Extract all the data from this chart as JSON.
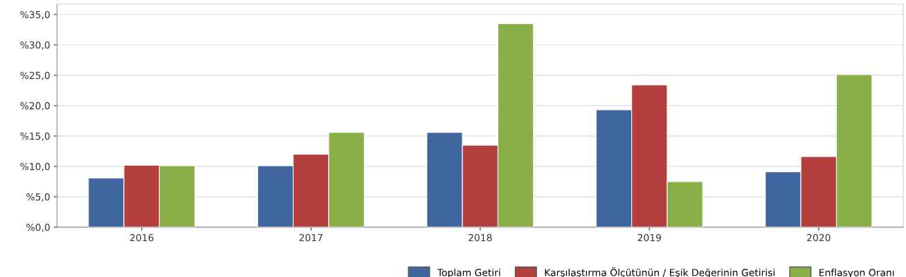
{
  "chart_data": {
    "type": "bar",
    "categories": [
      "2016",
      "2017",
      "2018",
      "2019",
      "2020"
    ],
    "series": [
      {
        "name": "Toplam Getiri",
        "color": "#3f679e",
        "values": [
          8.1,
          10.1,
          15.6,
          19.3,
          9.1
        ]
      },
      {
        "name": "Karşılaştırma Ölçütünün / Eşik Değerinin Getirisi",
        "color": "#b3403d",
        "values": [
          10.2,
          12.0,
          13.5,
          23.4,
          11.6
        ]
      },
      {
        "name": "Enflasyon Oranı",
        "color": "#8aae48",
        "values": [
          10.1,
          15.6,
          33.5,
          7.5,
          25.1
        ]
      }
    ],
    "ylim": [
      0,
      36.7
    ],
    "yticks": [
      {
        "value": 0,
        "label": "%0,0"
      },
      {
        "value": 5,
        "label": "%5,0"
      },
      {
        "value": 10,
        "label": "%10,0"
      },
      {
        "value": 15,
        "label": "%15,0"
      },
      {
        "value": 20,
        "label": "%20,0"
      },
      {
        "value": 25,
        "label": "%25,0"
      },
      {
        "value": 30,
        "label": "%30,0"
      },
      {
        "value": 35,
        "label": "%35,0"
      }
    ],
    "grid": "y",
    "legend": "bottom right"
  }
}
